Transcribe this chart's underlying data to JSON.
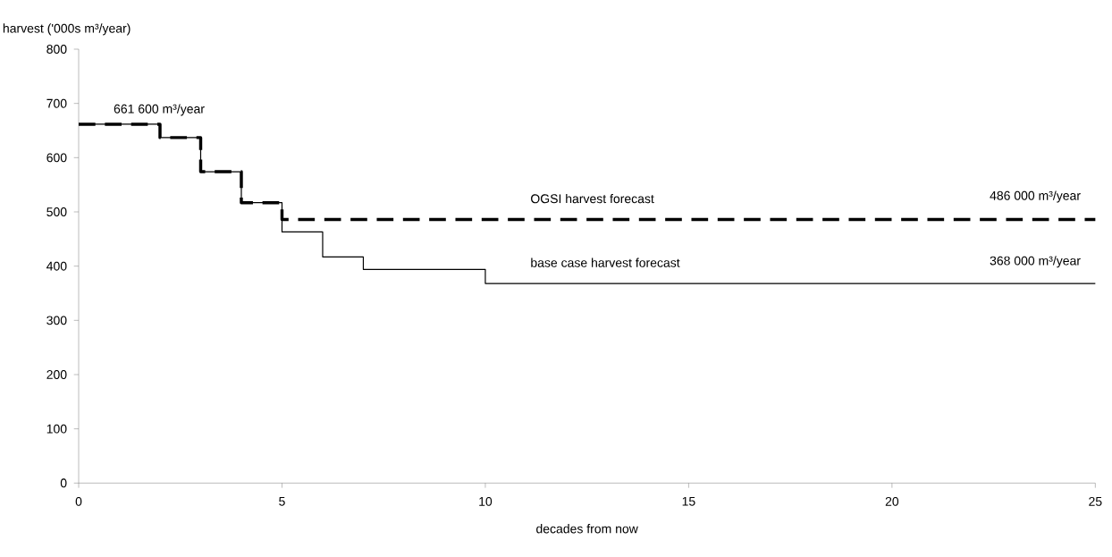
{
  "chart_data": {
    "type": "step",
    "xlabel": "decades from now",
    "ylabel": "harvest ('000s m³/year)",
    "xlim": [
      0,
      25
    ],
    "xticks": [
      0,
      5,
      10,
      15,
      20,
      25
    ],
    "ylim": [
      0,
      800
    ],
    "yticks": [
      0,
      100,
      200,
      300,
      400,
      500,
      600,
      700,
      800
    ],
    "legend": false,
    "grid": false,
    "marker": "none",
    "series": [
      {
        "name": "base case harvest forecast",
        "color": "#000000",
        "line_style": "solid",
        "x": [
          0,
          2,
          3,
          4,
          5,
          6,
          7,
          10,
          25
        ],
        "values": [
          661.6,
          637,
          574,
          517,
          463,
          417,
          394,
          368,
          368
        ]
      },
      {
        "name": "OGSI harvest forecast",
        "color": "#000000",
        "line_style": "dashed",
        "x": [
          0,
          2,
          3,
          4,
          5,
          25
        ],
        "values": [
          661.6,
          637,
          574,
          517,
          486,
          486
        ]
      }
    ],
    "annotations": [
      "661 600 m³/year",
      "486 000 m³/year",
      "368 000 m³/year"
    ]
  }
}
